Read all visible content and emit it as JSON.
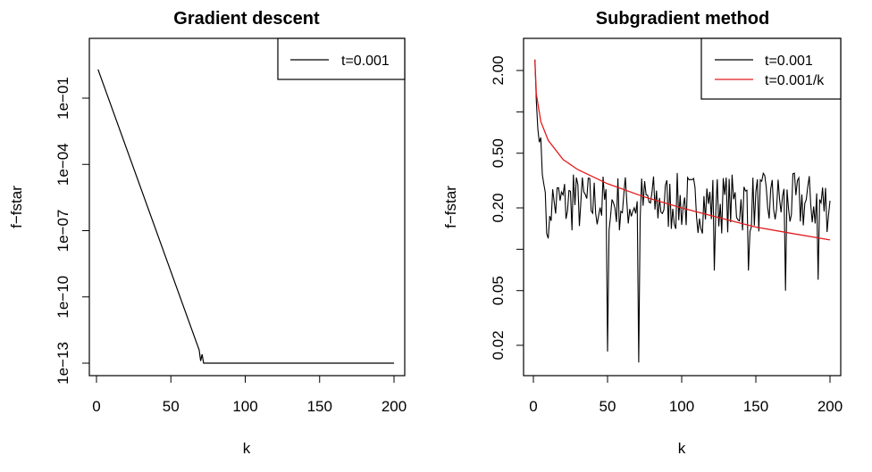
{
  "chart_data": [
    {
      "type": "line",
      "title": "Gradient descent",
      "xlabel": "k",
      "ylabel": "f−fstar",
      "log_y": true,
      "xlim": [
        0,
        200
      ],
      "ylim_exponent": [
        -13,
        0
      ],
      "xticks": [
        0,
        50,
        100,
        150,
        200
      ],
      "xtick_labels": [
        "0",
        "50",
        "100",
        "150",
        "200"
      ],
      "yticks": [
        -1,
        -4,
        -7,
        -10,
        -13
      ],
      "ytick_labels": [
        "1e−01",
        "1e−04",
        "1e−07",
        "1e−10",
        "1e−13"
      ],
      "legend_position": "top-right",
      "series": [
        {
          "name": "t=0.001",
          "color": "#000000",
          "log10_points": [
            [
              1,
              0.3
            ],
            [
              69,
              -12.4
            ],
            [
              70,
              -12.9
            ],
            [
              71,
              -12.6
            ],
            [
              72,
              -13.0
            ],
            [
              200,
              -13.0
            ]
          ],
          "description": "linear decrease on log scale, then flat at machine precision"
        }
      ]
    },
    {
      "type": "line",
      "title": "Subgradient method",
      "xlabel": "k",
      "ylabel": "f−fstar",
      "log_y": true,
      "xlim": [
        0,
        200
      ],
      "ylim": [
        0.015,
        3.0
      ],
      "xticks": [
        0,
        50,
        100,
        150,
        200
      ],
      "xtick_labels": [
        "0",
        "50",
        "100",
        "150",
        "200"
      ],
      "yticks": [
        2.0,
        0.5,
        0.2,
        0.05,
        0.02
      ],
      "ytick_labels": [
        "2.00",
        "0.50",
        "0.20",
        "0.05",
        "0.02"
      ],
      "legend_position": "top-right",
      "series": [
        {
          "name": "t=0.001",
          "color": "#000000",
          "start": [
            [
              1,
              2.4
            ],
            [
              2,
              1.2
            ],
            [
              3,
              0.75
            ],
            [
              4,
              0.6
            ],
            [
              5,
              0.65
            ],
            [
              6,
              0.35
            ],
            [
              7,
              0.3
            ],
            [
              8,
              0.26
            ]
          ],
          "noise_range": [
            0.13,
            0.36
          ],
          "dips": [
            [
              10,
              0.12
            ],
            [
              27,
              0.35
            ],
            [
              50,
              0.018
            ],
            [
              71,
              0.015
            ],
            [
              122,
              0.07
            ],
            [
              145,
              0.07
            ],
            [
              170,
              0.05
            ],
            [
              192,
              0.06
            ]
          ]
        },
        {
          "name": "t=0.001/k",
          "color": "#e31a1c",
          "curve": [
            [
              1,
              2.4
            ],
            [
              2,
              1.35
            ],
            [
              5,
              0.85
            ],
            [
              10,
              0.62
            ],
            [
              20,
              0.45
            ],
            [
              30,
              0.38
            ],
            [
              50,
              0.3
            ],
            [
              75,
              0.24
            ],
            [
              100,
              0.2
            ],
            [
              125,
              0.17
            ],
            [
              150,
              0.145
            ],
            [
              175,
              0.13
            ],
            [
              200,
              0.117
            ]
          ]
        }
      ]
    }
  ]
}
